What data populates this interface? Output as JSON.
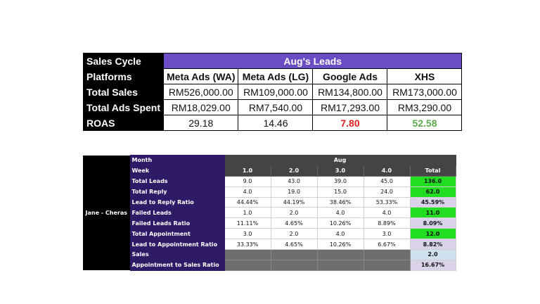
{
  "summary": {
    "row_labels": [
      "Sales Cycle",
      "Platforms",
      "Total Sales",
      "Total Ads Spent",
      "ROAS"
    ],
    "title": "Aug's Leads",
    "platforms": [
      "Meta Ads (WA)",
      "Meta Ads (LG)",
      "Google Ads",
      "XHS"
    ],
    "total_sales": [
      "RM526,000.00",
      "RM109,000.00",
      "RM134,800.00",
      "RM173,000.00"
    ],
    "total_ads_spent": [
      "RM18,029.00",
      "RM7,540.00",
      "RM17,293.00",
      "RM3,290.00"
    ],
    "roas": [
      "29.18",
      "14.46",
      "7.80",
      "52.58"
    ],
    "colors": {
      "header_purple": "#6a4cc4",
      "roas_red": "#e02020",
      "roas_green": "#5aa84a"
    }
  },
  "weekly": {
    "person": "Jane - Cheras",
    "month_label": "Month",
    "month": "Aug",
    "week_label": "Week",
    "weeks": [
      "1.0",
      "2.0",
      "3.0",
      "4.0"
    ],
    "total_label": "Total",
    "rows": [
      {
        "label": "Total Leads",
        "values": [
          "9.0",
          "43.0",
          "39.0",
          "45.0"
        ],
        "total": "136.0"
      },
      {
        "label": "Total Reply",
        "values": [
          "4.0",
          "19.0",
          "15.0",
          "24.0"
        ],
        "total": "62.0"
      },
      {
        "label": "Lead to Reply Ratio",
        "values": [
          "44.44%",
          "44.19%",
          "38.46%",
          "53.33%"
        ],
        "total": "45.59%"
      },
      {
        "label": "Failed Leads",
        "values": [
          "1.0",
          "2.0",
          "4.0",
          "4.0"
        ],
        "total": "11.0"
      },
      {
        "label": "Failed Leads Ratio",
        "values": [
          "11.11%",
          "4.65%",
          "10.26%",
          "8.89%"
        ],
        "total": "8.09%"
      },
      {
        "label": "Total Appointment",
        "values": [
          "3.0",
          "2.0",
          "4.0",
          "3.0"
        ],
        "total": "12.0"
      },
      {
        "label": "Lead to Appointment Ratio",
        "values": [
          "33.33%",
          "4.65%",
          "10.26%",
          "6.67%"
        ],
        "total": "8.82%"
      },
      {
        "label": "Sales",
        "values": [
          "",
          "",
          "",
          ""
        ],
        "total": "2.0"
      },
      {
        "label": "Appointment to Sales Ratio",
        "values": [
          "",
          "",
          "",
          ""
        ],
        "total": "16.67%"
      }
    ],
    "colors": {
      "label_purple": "#2e1a66",
      "total_green": "#22dd22",
      "total_lavender": "#d9d2ea",
      "total_blue": "#cfe0ef",
      "empty_grey": "#6e6e6e"
    }
  }
}
